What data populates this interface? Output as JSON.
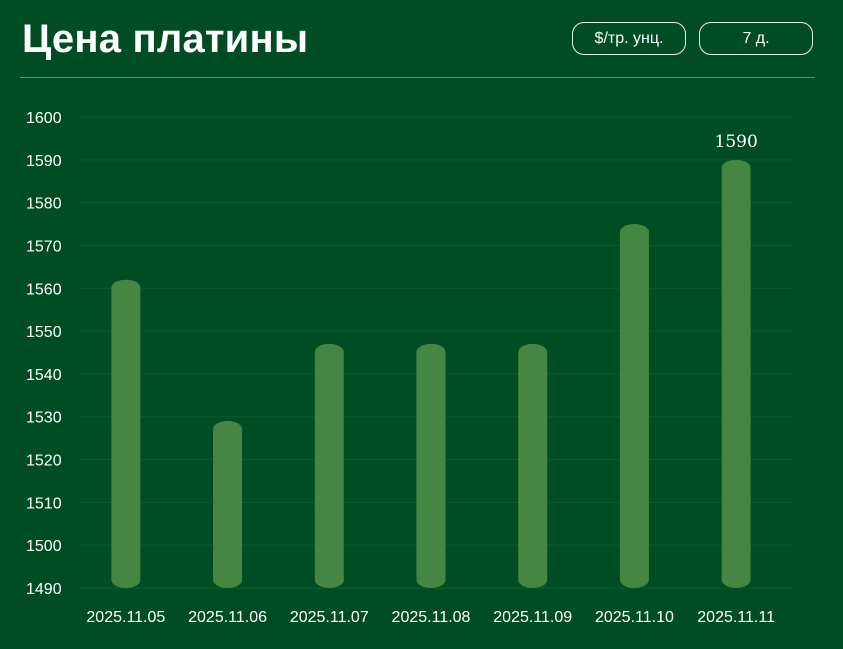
{
  "header": {
    "title": "Цена платины",
    "unit_button": "$/тр. унц.",
    "range_button": "7 д."
  },
  "colors": {
    "background": "#004d24",
    "bar": "#448642",
    "grid": "#0b5a2e",
    "divider": "#5a9666"
  },
  "chart_data": {
    "type": "bar",
    "title": "Цена платины",
    "categories": [
      "2025.11.05",
      "2025.11.06",
      "2025.11.07",
      "2025.11.08",
      "2025.11.09",
      "2025.11.10",
      "2025.11.11"
    ],
    "series": [
      {
        "values": [
          1562,
          1529,
          1547,
          1547,
          1547,
          1575,
          1590
        ]
      }
    ],
    "ylim": [
      1490,
      1600
    ],
    "yticks": [
      1490,
      1500,
      1510,
      1520,
      1530,
      1540,
      1550,
      1560,
      1570,
      1580,
      1590,
      1600
    ],
    "grid": true,
    "data_labels": [
      {
        "category": "2025.11.11",
        "text": "1590"
      }
    ]
  }
}
